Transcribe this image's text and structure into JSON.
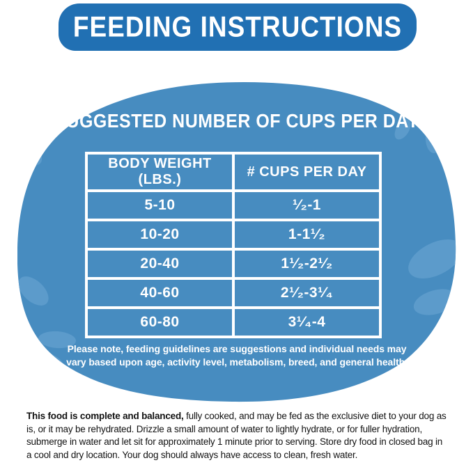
{
  "header": {
    "title": "FEEDING INSTRUCTIONS"
  },
  "panel": {
    "heading": "SUGGESTED NUMBER OF CUPS PER DAY",
    "table": {
      "columns": [
        "BODY WEIGHT (LBS.)",
        "# CUPS PER DAY"
      ],
      "rows": [
        {
          "weight": "5-10",
          "cups": "¹⁄₂-1"
        },
        {
          "weight": "10-20",
          "cups": "1-1¹⁄₂"
        },
        {
          "weight": "20-40",
          "cups": "1¹⁄₂-2¹⁄₂"
        },
        {
          "weight": "40-60",
          "cups": "2¹⁄₂-3¹⁄₄"
        },
        {
          "weight": "60-80",
          "cups": "3¹⁄₄-4"
        }
      ]
    },
    "note": [
      "Please note, feeding guidelines are suggestions and individual needs may",
      "vary based upon age, activity level, metabolism, breed, and general health."
    ]
  },
  "footer": {
    "bold_intro": "This food is complete and balanced,",
    "body": " fully cooked, and may be fed as the exclusive diet to your dog as is, or it may be rehydrated. Drizzle a small amount of water to lightly hydrate, or for fuller hydration, submerge in water and let sit for approximately 1 minute prior to serving. Store dry food in closed bag in a cool and dry location. Your dog should always have access to clean, fresh water."
  },
  "colors": {
    "banner_blue": "#2170b3",
    "blob_blue": "#478cc0",
    "kibble_blue": "#5c9bcb",
    "text_white": "#ffffff",
    "footer_text": "#111111"
  }
}
